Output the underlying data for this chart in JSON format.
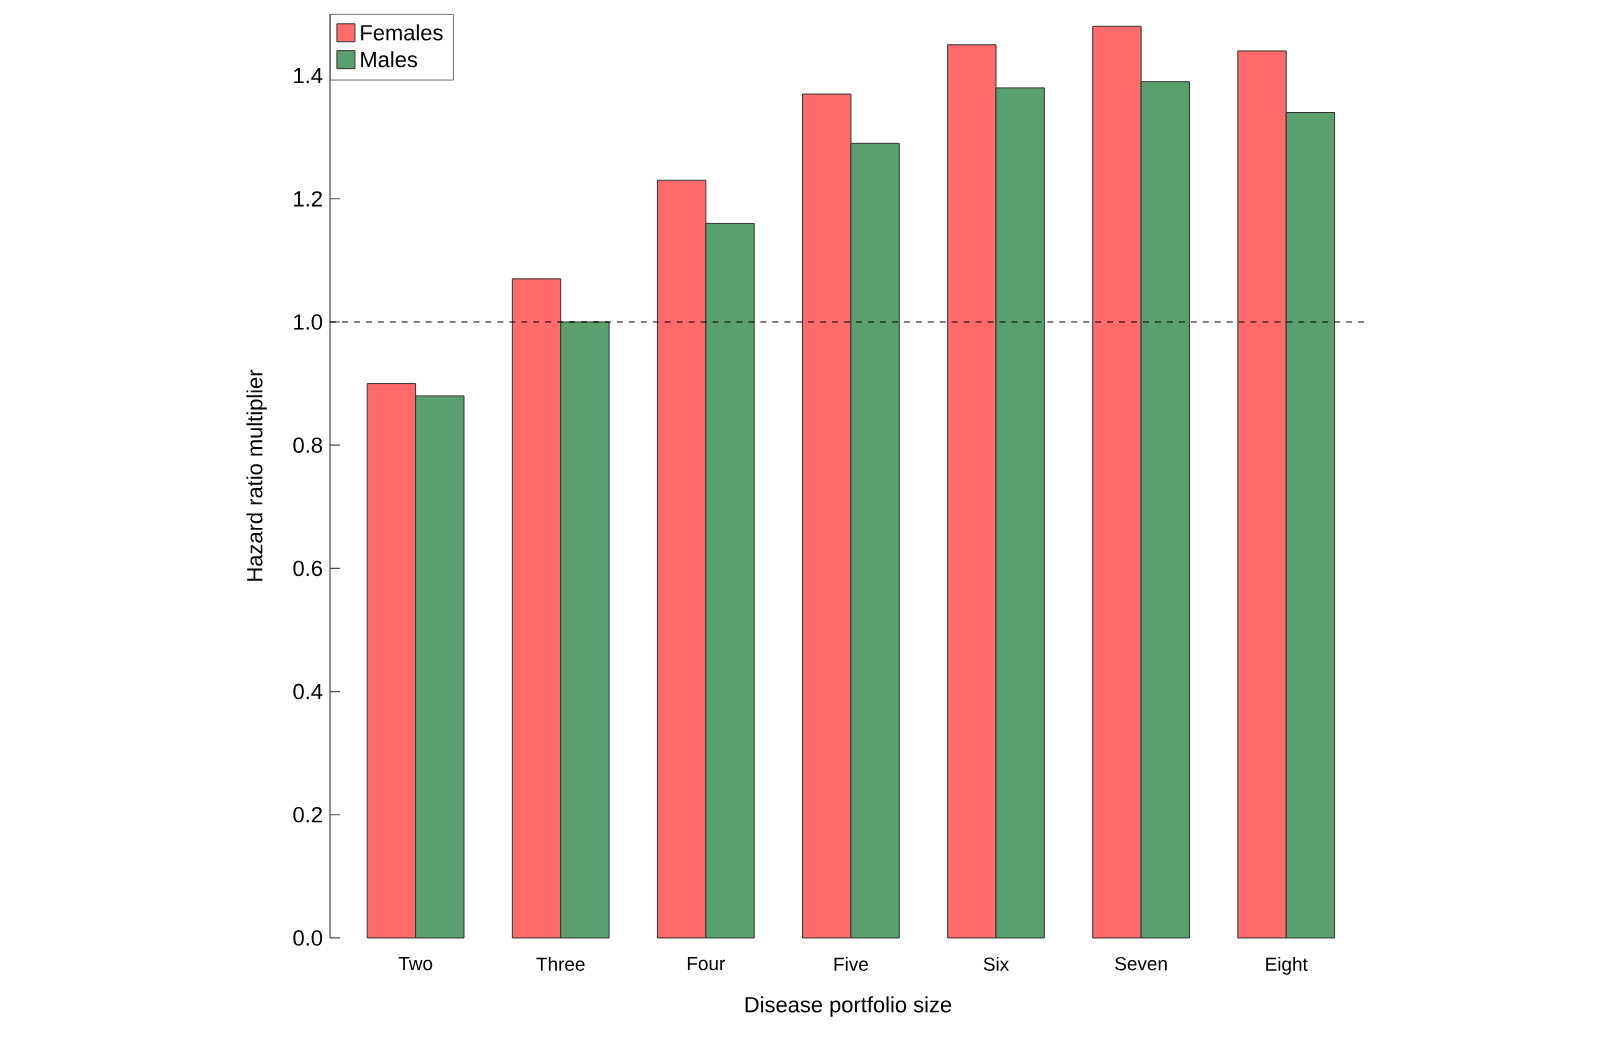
{
  "chart_data": {
    "type": "bar",
    "xlabel": "Disease portfolio size",
    "ylabel": "Hazard ratio multiplier",
    "categories": [
      "Two",
      "Three",
      "Four",
      "Five",
      "Six",
      "Seven",
      "Eight"
    ],
    "series": [
      {
        "name": "Females",
        "color": "#ff6b6b",
        "values": [
          0.9,
          1.07,
          1.23,
          1.37,
          1.45,
          1.48,
          1.44
        ]
      },
      {
        "name": "Males",
        "color": "#5aa06f",
        "values": [
          0.88,
          1.0,
          1.16,
          1.29,
          1.38,
          1.39,
          1.34
        ]
      }
    ],
    "ylim": [
      0,
      1.5
    ],
    "yticks": [
      {
        "value": 0,
        "label": "0.0"
      },
      {
        "value": 0.2,
        "label": "0.2"
      },
      {
        "value": 0.4,
        "label": "0.4"
      },
      {
        "value": 0.6,
        "label": "0.6"
      },
      {
        "value": 0.8,
        "label": "0.8"
      },
      {
        "value": 1.0,
        "label": "1.0"
      },
      {
        "value": 1.2,
        "label": "1.2"
      },
      {
        "value": 1.4,
        "label": "1.4"
      }
    ],
    "ref_lines": [
      {
        "axis": "y",
        "value": 1.0,
        "line_style": "dashed"
      }
    ],
    "legend": "top left",
    "grid": false
  }
}
